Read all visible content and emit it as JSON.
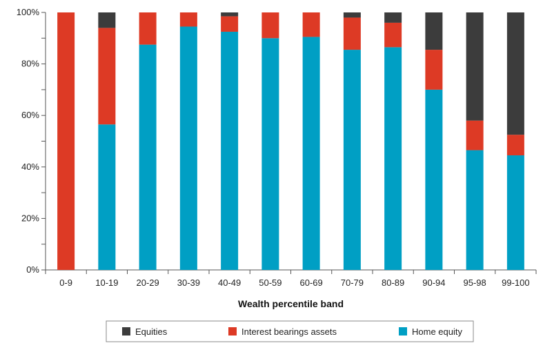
{
  "chart_data": {
    "type": "bar",
    "stacked": true,
    "categories": [
      "0-9",
      "10-19",
      "20-29",
      "30-39",
      "40-49",
      "50-59",
      "60-69",
      "70-79",
      "80-89",
      "90-94",
      "95-98",
      "99-100"
    ],
    "series": [
      {
        "name": "Home equity",
        "color": "#009fc4",
        "values": [
          0,
          56.5,
          87.5,
          94.5,
          92.5,
          90,
          90.5,
          85.5,
          86.5,
          70,
          46.5,
          44.5
        ]
      },
      {
        "name": "Interest bearings assets",
        "color": "#dd3a25",
        "values": [
          100,
          37.5,
          12.5,
          5.5,
          6,
          10,
          9.5,
          12.5,
          9.5,
          15.5,
          11.5,
          8
        ]
      },
      {
        "name": "Equities",
        "color": "#3c3c3c",
        "values": [
          0,
          6,
          0,
          0,
          1.5,
          0,
          0,
          2,
          4,
          14.5,
          42,
          47.5
        ]
      }
    ],
    "legend_order": [
      "Equities",
      "Interest bearings assets",
      "Home equity"
    ],
    "xlabel": "Wealth percentile band",
    "ylabel": "",
    "ylim": [
      0,
      100
    ],
    "yticks": [
      0,
      20,
      40,
      60,
      80,
      100
    ],
    "ytick_labels": [
      "0%",
      "20%",
      "40%",
      "60%",
      "80%",
      "100%"
    ],
    "grid": false,
    "legend_position": "bottom"
  }
}
